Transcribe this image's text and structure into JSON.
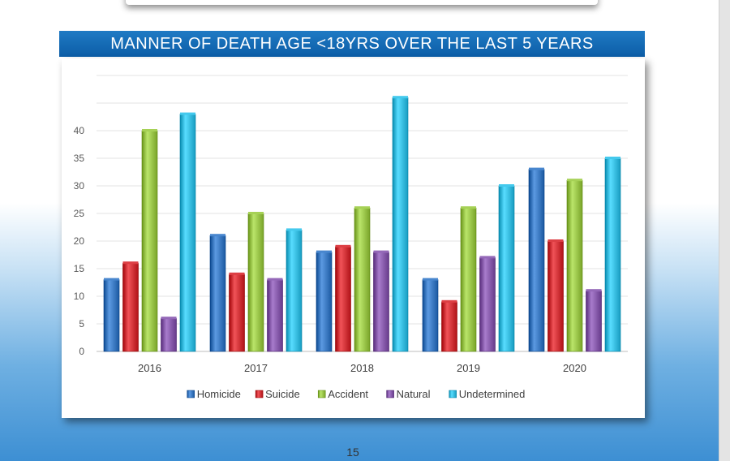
{
  "page": {
    "title": "MANNER OF DEATH AGE <18YRS OVER THE LAST 5 YEARS",
    "page_number": "15"
  },
  "chart_data": {
    "type": "bar",
    "title": "MANNER OF DEATH AGE <18YRS OVER THE LAST 5 YEARS",
    "categories": [
      "2016",
      "2017",
      "2018",
      "2019",
      "2020"
    ],
    "series": [
      {
        "name": "Homicide",
        "color": "#2f6db5",
        "values": [
          13,
          21,
          18,
          13,
          33
        ]
      },
      {
        "name": "Suicide",
        "color": "#c4262b",
        "values": [
          16,
          14,
          19,
          9,
          20
        ]
      },
      {
        "name": "Accident",
        "color": "#8db83d",
        "values": [
          40,
          25,
          26,
          26,
          31
        ]
      },
      {
        "name": "Natural",
        "color": "#7b4f9f",
        "values": [
          6,
          13,
          18,
          17,
          11
        ]
      },
      {
        "name": "Undetermined",
        "color": "#2bb0d4",
        "values": [
          43,
          22,
          46,
          30,
          35
        ]
      }
    ],
    "ylim": [
      0,
      50
    ],
    "yticks": [
      0,
      5,
      10,
      15,
      20,
      25,
      30,
      35,
      40
    ],
    "xlabel": "",
    "ylabel": "",
    "grid": true,
    "legend": "bottom"
  }
}
